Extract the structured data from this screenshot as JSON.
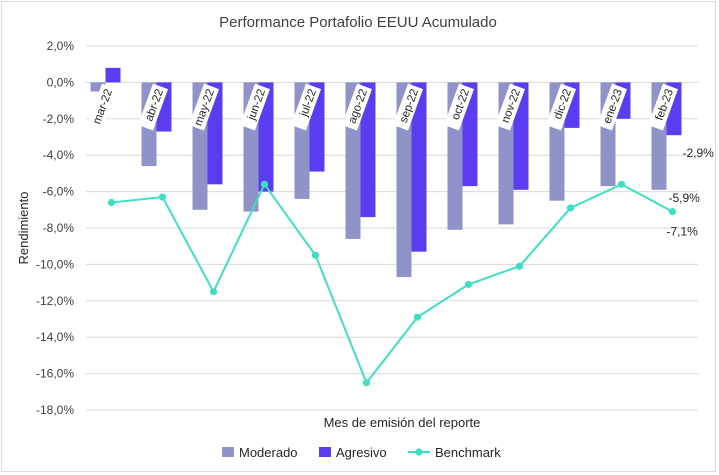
{
  "chart_data": {
    "type": "bar",
    "title": "Performance Portafolio EEUU Acumulado",
    "xlabel": "Mes de emisión del reporte",
    "ylabel": "Rendimiento",
    "ylim": [
      -18,
      2
    ],
    "yticks": [
      2,
      0,
      -2,
      -4,
      -6,
      -8,
      -10,
      -12,
      -14,
      -16,
      -18
    ],
    "ytick_labels": [
      "2,0%",
      "0,0%",
      "-2,0%",
      "-4,0%",
      "-6,0%",
      "-8,0%",
      "-10,0%",
      "-12,0%",
      "-14,0%",
      "-16,0%",
      "-18,0%"
    ],
    "categories": [
      "mar-22",
      "abr-22",
      "may-22",
      "jun-22",
      "jul-22",
      "ago-22",
      "sep-22",
      "oct-22",
      "nov-22",
      "dic-22",
      "ene-23",
      "feb-23"
    ],
    "series": [
      {
        "name": "Moderado",
        "type": "bar",
        "color": "#8f93c8",
        "values": [
          -0.5,
          -4.6,
          -7.0,
          -7.1,
          -6.4,
          -8.6,
          -10.7,
          -8.1,
          -7.8,
          -6.5,
          -5.7,
          -5.9
        ]
      },
      {
        "name": "Agresivo",
        "type": "bar",
        "color": "#5b3cf0",
        "values": [
          0.8,
          -2.7,
          -5.6,
          -6.0,
          -4.9,
          -7.4,
          -9.3,
          -5.7,
          -5.9,
          -2.5,
          -2.0,
          -2.9
        ]
      },
      {
        "name": "Benchmark",
        "type": "line",
        "color": "#3fe0c2",
        "values": [
          -6.6,
          -6.3,
          -11.5,
          -5.6,
          -9.5,
          -16.5,
          -12.9,
          -11.1,
          -10.1,
          -6.9,
          -5.6,
          -7.1
        ]
      }
    ],
    "data_labels": [
      {
        "series": "Agresivo",
        "category": "feb-23",
        "text": "-2,9%"
      },
      {
        "series": "Moderado",
        "category": "feb-23",
        "text": "-5,9%"
      },
      {
        "series": "Benchmark",
        "category": "feb-23",
        "text": "-7,1%"
      }
    ],
    "legend": "bottom",
    "grid": true
  }
}
